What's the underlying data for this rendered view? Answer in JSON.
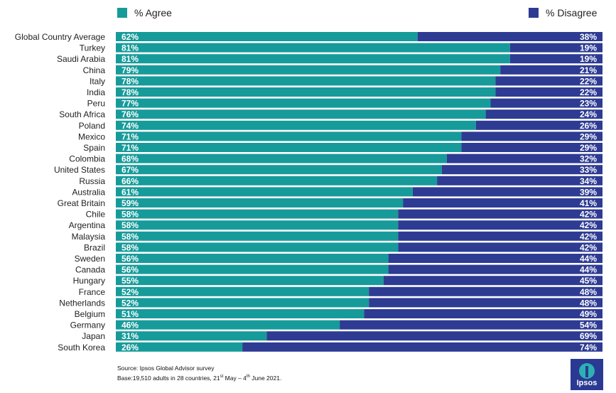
{
  "legend": {
    "agree": "% Agree",
    "disagree": "% Disagree"
  },
  "colors": {
    "agree": "#169b9a",
    "disagree": "#2e3b93",
    "text": "#ffffff"
  },
  "source": {
    "line1": "Source: Ipsos Global Advisor survey",
    "line2_pre": "Base:19,510 adults in 28 countries, 21",
    "line2_sup1": "st",
    "line2_mid": " May – 4",
    "line2_sup2": "th",
    "line2_post": " June 2021."
  },
  "logo": {
    "text": "Ipsos"
  },
  "chart_data": {
    "type": "bar",
    "stacked": true,
    "orientation": "horizontal",
    "categories": [
      "Global Country Average",
      "Turkey",
      "Saudi Arabia",
      "China",
      "Italy",
      "India",
      "Peru",
      "South Africa",
      "Poland",
      "Mexico",
      "Spain",
      "Colombia",
      "United States",
      "Russia",
      "Australia",
      "Great Britain",
      "Chile",
      "Argentina",
      "Malaysia",
      "Brazil",
      "Sweden",
      "Canada",
      "Hungary",
      "France",
      "Netherlands",
      "Belgium",
      "Germany",
      "Japan",
      "South Korea"
    ],
    "series": [
      {
        "name": "% Agree",
        "values": [
          62,
          81,
          81,
          79,
          78,
          78,
          77,
          76,
          74,
          71,
          71,
          68,
          67,
          66,
          61,
          59,
          58,
          58,
          58,
          58,
          56,
          56,
          55,
          52,
          52,
          51,
          46,
          31,
          26
        ]
      },
      {
        "name": "% Disagree",
        "values": [
          38,
          19,
          19,
          21,
          22,
          22,
          23,
          24,
          26,
          29,
          29,
          32,
          33,
          34,
          39,
          41,
          42,
          42,
          42,
          42,
          44,
          44,
          45,
          48,
          48,
          49,
          54,
          69,
          74
        ]
      }
    ],
    "xlim": [
      0,
      100
    ]
  }
}
